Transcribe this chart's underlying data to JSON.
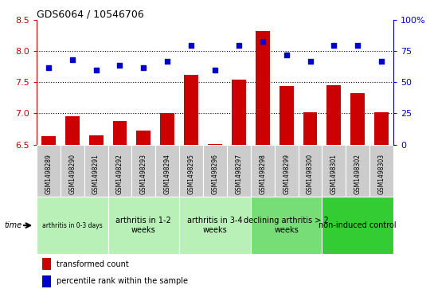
{
  "title": "GDS6064 / 10546706",
  "samples": [
    "GSM1498289",
    "GSM1498290",
    "GSM1498291",
    "GSM1498292",
    "GSM1498293",
    "GSM1498294",
    "GSM1498295",
    "GSM1498296",
    "GSM1498297",
    "GSM1498298",
    "GSM1498299",
    "GSM1498300",
    "GSM1498301",
    "GSM1498302",
    "GSM1498303"
  ],
  "transformed_count": [
    6.63,
    6.95,
    6.65,
    6.88,
    6.72,
    7.01,
    7.62,
    6.51,
    7.55,
    8.32,
    7.44,
    7.02,
    7.46,
    7.33,
    7.02
  ],
  "percentile_rank": [
    62,
    68,
    60,
    64,
    62,
    67,
    80,
    60,
    80,
    83,
    72,
    67,
    80,
    80,
    67
  ],
  "bar_color": "#cc0000",
  "dot_color": "#0000cc",
  "ylim_left": [
    6.5,
    8.5
  ],
  "ylim_right": [
    0,
    100
  ],
  "yticks_left": [
    6.5,
    7.0,
    7.5,
    8.0,
    8.5
  ],
  "yticks_right": [
    0,
    25,
    50,
    75,
    100
  ],
  "grid_yticks": [
    7.0,
    7.5,
    8.0
  ],
  "groups": [
    {
      "label": "arthritis in 0-3 days",
      "start": 0,
      "end": 3,
      "color": "#b8f0b8",
      "small": true
    },
    {
      "label": "arthritis in 1-2\nweeks",
      "start": 3,
      "end": 6,
      "color": "#b8f0b8",
      "small": false
    },
    {
      "label": "arthritis in 3-4\nweeks",
      "start": 6,
      "end": 9,
      "color": "#b8f0b8",
      "small": false
    },
    {
      "label": "declining arthritis > 2\nweeks",
      "start": 9,
      "end": 12,
      "color": "#77dd77",
      "small": false
    },
    {
      "label": "non-induced control",
      "start": 12,
      "end": 15,
      "color": "#33cc33",
      "small": false
    }
  ],
  "legend_labels": [
    "transformed count",
    "percentile rank within the sample"
  ],
  "time_label": "time"
}
